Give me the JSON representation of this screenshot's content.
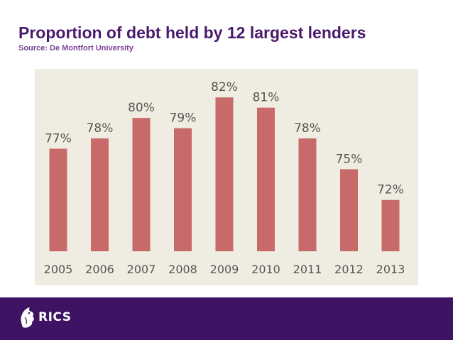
{
  "header": {
    "title": "Proportion of debt held by 12 largest lenders",
    "source": "Source: De Montfort University"
  },
  "footer": {
    "logo_text": "RICS",
    "logo_icon": "lion-icon"
  },
  "colors": {
    "title": "#4a1a6e",
    "bar": "#c96a6a",
    "panel": "#efece2",
    "footer": "#3f1363",
    "label": "#5a5550"
  },
  "chart_data": {
    "type": "bar",
    "categories": [
      "2005",
      "2006",
      "2007",
      "2008",
      "2009",
      "2010",
      "2011",
      "2012",
      "2013"
    ],
    "values": [
      77,
      78,
      80,
      79,
      82,
      81,
      78,
      75,
      72
    ],
    "value_labels": [
      "77%",
      "78%",
      "80%",
      "79%",
      "82%",
      "81%",
      "78%",
      "75%",
      "72%"
    ],
    "title": "",
    "xlabel": "",
    "ylabel": "",
    "unit": "%",
    "ylim": [
      67,
      82.5
    ],
    "grid": false,
    "legend": "none"
  }
}
